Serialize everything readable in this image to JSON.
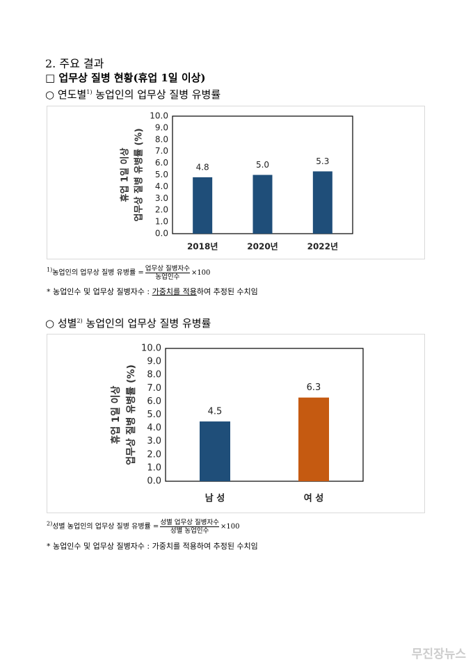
{
  "heading": "2. 주요 결과",
  "subheading": "□ 업무상 질병 현황(휴업 1일 이상)",
  "sections": [
    {
      "title": "○ 연도별",
      "sup": "1)",
      "title_rest": " 농업인의 업무상 질병 유병률",
      "footnote": {
        "mark": "1)",
        "lhs": "농업인의 업무상 질병 유병률",
        "eq": "=",
        "num": "업무상 질병자수",
        "den": "농업인수",
        "times": "×100"
      },
      "note": {
        "pre": "* 농업인수 및 업무상 질병자수 : ",
        "underlined": "가중치를 적용",
        "post": "하여 추정된 수치임"
      }
    },
    {
      "title": "○ 성별",
      "sup": "2)",
      "title_rest": " 농업인의 업무상 질병 유병률",
      "footnote": {
        "mark": "2)",
        "lhs": "성별 농업인의 업무상 질병 유병률",
        "eq": "=",
        "num": "성별 업무상 질병자수",
        "den": "성별 농업인수",
        "times": "×100"
      },
      "note": {
        "pre": "* 농업인수 및 업무상 질병자수 : ",
        "underlined": "",
        "post": "가중치를 적용하여 추정된 수치임"
      }
    }
  ],
  "chart_data": [
    {
      "type": "bar",
      "y_label": [
        "휴업 1일 이상",
        "업무상 질병 유병률 (%)"
      ],
      "categories": [
        "2018년",
        "2020년",
        "2022년"
      ],
      "values": [
        4.8,
        5.0,
        5.3
      ],
      "value_labels": [
        "4.8",
        "5.0",
        "5.3"
      ],
      "colors": [
        "#1f4e79",
        "#1f4e79",
        "#1f4e79"
      ],
      "ylim": [
        0,
        10
      ],
      "yticks": [
        {
          "value": 0,
          "label": "0.0"
        },
        {
          "value": 1,
          "label": "1.0"
        },
        {
          "value": 2,
          "label": "2.0"
        },
        {
          "value": 3,
          "label": "3.0"
        },
        {
          "value": 4,
          "label": "4.0"
        },
        {
          "value": 5,
          "label": "5.0"
        },
        {
          "value": 6,
          "label": "6.0"
        },
        {
          "value": 7,
          "label": "7.0"
        },
        {
          "value": 8,
          "label": "8.0"
        },
        {
          "value": 9,
          "label": "9.0"
        },
        {
          "value": 10,
          "label": "10.0"
        }
      ]
    },
    {
      "type": "bar",
      "y_label": [
        "휴업 1일 이상",
        "업무상 질병 유병률 (%)"
      ],
      "categories": [
        "남 성",
        "여 성"
      ],
      "values": [
        4.5,
        6.3
      ],
      "value_labels": [
        "4.5",
        "6.3"
      ],
      "colors": [
        "#1f4e79",
        "#c55a11"
      ],
      "ylim": [
        0,
        10
      ],
      "yticks": [
        {
          "value": 0,
          "label": "0.0"
        },
        {
          "value": 1,
          "label": "1.0"
        },
        {
          "value": 2,
          "label": "2.0"
        },
        {
          "value": 3,
          "label": "3.0"
        },
        {
          "value": 4,
          "label": "4.0"
        },
        {
          "value": 5,
          "label": "5.0"
        },
        {
          "value": 6,
          "label": "6.0"
        },
        {
          "value": 7,
          "label": "7.0"
        },
        {
          "value": 8,
          "label": "8.0"
        },
        {
          "value": 9,
          "label": "9.0"
        },
        {
          "value": 10,
          "label": "10.0"
        }
      ]
    }
  ],
  "watermark": "무진장뉴스"
}
